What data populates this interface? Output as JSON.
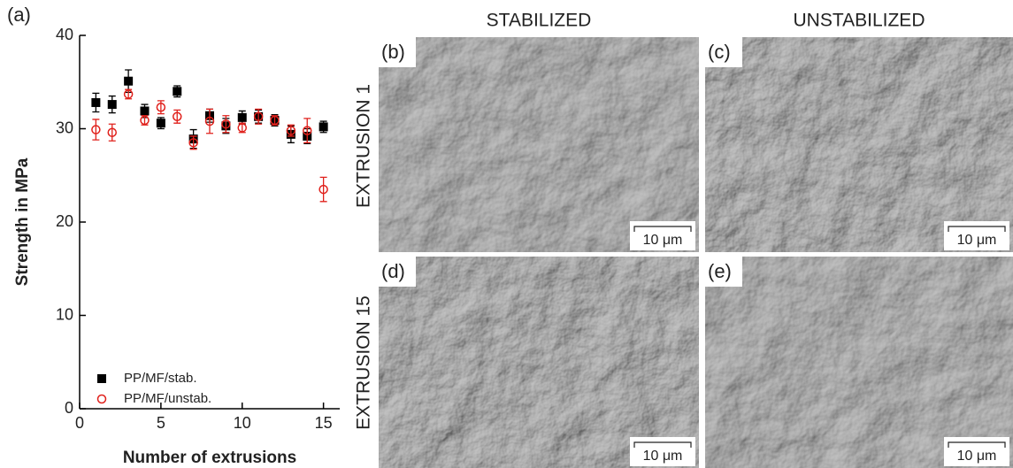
{
  "chart_data": {
    "type": "scatter",
    "panel_label": "(a)",
    "x_label": "Number of extrusions",
    "y_label": "Strength in MPa",
    "x": [
      1,
      2,
      3,
      4,
      5,
      6,
      7,
      8,
      9,
      10,
      11,
      12,
      13,
      14,
      15
    ],
    "series": [
      {
        "name": "PP/MF/stab.",
        "color": "#000000",
        "marker": "square",
        "values": [
          32.8,
          32.6,
          35.1,
          31.9,
          30.6,
          34.0,
          28.9,
          31.4,
          30.3,
          31.2,
          31.3,
          30.9,
          29.4,
          29.2,
          30.2
        ],
        "errors": [
          1.0,
          0.9,
          1.2,
          0.7,
          0.6,
          0.6,
          1.0,
          0.7,
          0.8,
          0.7,
          0.7,
          0.6,
          0.9,
          0.8,
          0.6
        ]
      },
      {
        "name": "PP/MF/unstab.",
        "color": "#e0201b",
        "marker": "circle",
        "values": [
          29.9,
          29.6,
          33.7,
          30.9,
          32.3,
          31.3,
          28.5,
          30.8,
          30.5,
          30.1,
          31.3,
          30.9,
          29.8,
          29.8,
          23.5
        ],
        "errors": [
          1.1,
          0.9,
          0.5,
          0.5,
          0.7,
          0.7,
          0.7,
          1.3,
          0.9,
          0.5,
          0.8,
          0.5,
          0.6,
          1.3,
          1.3
        ]
      }
    ],
    "xlim": [
      0,
      16
    ],
    "xticks": [
      0,
      5,
      10,
      15
    ],
    "ylim": [
      0,
      40
    ],
    "yticks": [
      0,
      10,
      20,
      30,
      40
    ],
    "legend": "lower left"
  },
  "micrographs": {
    "columns": [
      "STABILIZED",
      "UNSTABILIZED"
    ],
    "rows": [
      "EXTRUSION 1",
      "EXTRUSION 15"
    ],
    "panels": [
      {
        "label": "(b)",
        "scale_bar": "10 μm"
      },
      {
        "label": "(c)",
        "scale_bar": "10 μm"
      },
      {
        "label": "(d)",
        "scale_bar": "10 μm"
      },
      {
        "label": "(e)",
        "scale_bar": "10 μm"
      }
    ]
  }
}
